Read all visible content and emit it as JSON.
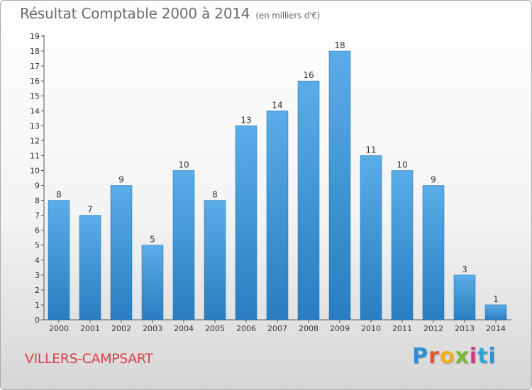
{
  "header": {
    "title": "Résultat Comptable 2000 à 2014",
    "subtitle": "(en milliers d'€)"
  },
  "footer": {
    "place": "VILLERS-CAMPSART",
    "logo": [
      "P",
      "r",
      "o",
      "x",
      "i",
      "t",
      "i"
    ]
  },
  "colors": {
    "bar_light": "#5aade8",
    "bar_dark": "#2a7dbf",
    "axis": "#555555",
    "tick_text": "#333333",
    "title": "#6b6b6b",
    "place": "#d9414a"
  },
  "chart_data": {
    "type": "bar",
    "title": "Résultat Comptable 2000 à 2014",
    "subtitle": "(en milliers d'€)",
    "xlabel": "",
    "ylabel": "",
    "categories": [
      "2000",
      "2001",
      "2002",
      "2003",
      "2004",
      "2005",
      "2006",
      "2007",
      "2008",
      "2009",
      "2010",
      "2011",
      "2012",
      "2013",
      "2014"
    ],
    "values": [
      8,
      7,
      9,
      5,
      10,
      8,
      13,
      14,
      16,
      18,
      11,
      10,
      9,
      3,
      1
    ],
    "data_labels": [
      "8",
      "7",
      "9",
      "5",
      "10",
      "8",
      "13",
      "14",
      "16",
      "18",
      "11",
      "10",
      "9",
      "3",
      "1"
    ],
    "ylim": [
      0,
      19
    ],
    "yticks": [
      "0",
      "1",
      "2",
      "3",
      "4",
      "5",
      "6",
      "7",
      "8",
      "9",
      "10",
      "11",
      "12",
      "13",
      "14",
      "15",
      "16",
      "17",
      "18",
      "19"
    ],
    "grid": false,
    "legend": "none"
  }
}
